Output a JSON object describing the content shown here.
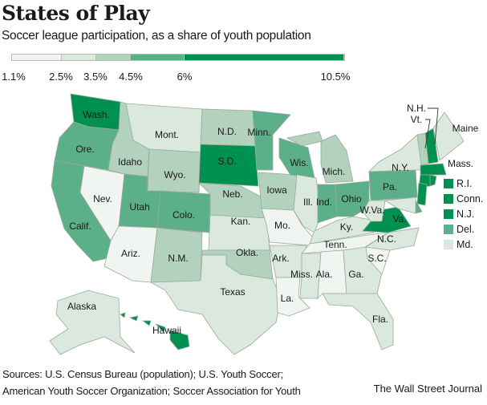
{
  "header": {
    "title": "States of Play",
    "subtitle": "Soccer league participation, as a share of youth population"
  },
  "legend": {
    "colors": [
      "#f1f5f1",
      "#dbe8de",
      "#b2d2bd",
      "#5bb08a",
      "#00904f"
    ],
    "breaks": [
      "1.1%",
      "2.5%",
      "3.5%",
      "4.5%",
      "6%",
      "10.5%"
    ],
    "break_values": [
      1.1,
      2.5,
      3.5,
      4.5,
      6,
      10.5
    ]
  },
  "states": [
    {
      "id": "WA",
      "label": "Wash.",
      "level": 5
    },
    {
      "id": "OR",
      "label": "Ore.",
      "level": 4
    },
    {
      "id": "CA",
      "label": "Calif.",
      "level": 4
    },
    {
      "id": "NV",
      "label": "Nev.",
      "level": 1
    },
    {
      "id": "ID",
      "label": "Idaho",
      "level": 3
    },
    {
      "id": "MT",
      "label": "Mont.",
      "level": 2
    },
    {
      "id": "WY",
      "label": "Wyo.",
      "level": 3
    },
    {
      "id": "UT",
      "label": "Utah",
      "level": 4
    },
    {
      "id": "CO",
      "label": "Colo.",
      "level": 4
    },
    {
      "id": "AZ",
      "label": "Ariz.",
      "level": 1
    },
    {
      "id": "NM",
      "label": "N.M.",
      "level": 3
    },
    {
      "id": "ND",
      "label": "N.D.",
      "level": 3
    },
    {
      "id": "SD",
      "label": "S.D.",
      "level": 5
    },
    {
      "id": "NE",
      "label": "Neb.",
      "level": 3
    },
    {
      "id": "KS",
      "label": "Kan.",
      "level": 2
    },
    {
      "id": "OK",
      "label": "Okla.",
      "level": 3
    },
    {
      "id": "TX",
      "label": "Texas",
      "level": 2
    },
    {
      "id": "MN",
      "label": "Minn.",
      "level": 4
    },
    {
      "id": "IA",
      "label": "Iowa",
      "level": 3
    },
    {
      "id": "MO",
      "label": "Mo.",
      "level": 1
    },
    {
      "id": "AR",
      "label": "Ark.",
      "level": 2
    },
    {
      "id": "LA",
      "label": "La.",
      "level": 1
    },
    {
      "id": "WI",
      "label": "Wis.",
      "level": 4
    },
    {
      "id": "IL",
      "label": "Ill.",
      "level": 2
    },
    {
      "id": "MI",
      "label": "Mich.",
      "level": 3
    },
    {
      "id": "IN",
      "label": "Ind.",
      "level": 4
    },
    {
      "id": "OH",
      "label": "Ohio",
      "level": 4
    },
    {
      "id": "KY",
      "label": "Ky.",
      "level": 2
    },
    {
      "id": "TN",
      "label": "Tenn.",
      "level": 1
    },
    {
      "id": "MS",
      "label": "Miss.",
      "level": 2
    },
    {
      "id": "AL",
      "label": "Ala.",
      "level": 1
    },
    {
      "id": "GA",
      "label": "Ga.",
      "level": 2
    },
    {
      "id": "FL",
      "label": "Fla.",
      "level": 2
    },
    {
      "id": "SC",
      "label": "S.C.",
      "level": 1
    },
    {
      "id": "NC",
      "label": "N.C.",
      "level": 2
    },
    {
      "id": "VA",
      "label": "Va.",
      "level": 5
    },
    {
      "id": "WV",
      "label": "W.Va.",
      "level": 2
    },
    {
      "id": "PA",
      "label": "Pa.",
      "level": 4
    },
    {
      "id": "NY",
      "label": "N.Y.",
      "level": 2
    },
    {
      "id": "VT",
      "label": "Vt.",
      "level": 3
    },
    {
      "id": "NH",
      "label": "N.H.",
      "level": 5
    },
    {
      "id": "ME",
      "label": "Maine",
      "level": 2
    },
    {
      "id": "MA",
      "label": "Mass.",
      "level": 5
    },
    {
      "id": "RI",
      "label": "R.I.",
      "level": 5
    },
    {
      "id": "CT",
      "label": "Conn.",
      "level": 5
    },
    {
      "id": "NJ",
      "label": "N.J.",
      "level": 5
    },
    {
      "id": "DE",
      "label": "Del.",
      "level": 4
    },
    {
      "id": "MD",
      "label": "Md.",
      "level": 2
    },
    {
      "id": "AK",
      "label": "Alaska",
      "level": 2
    },
    {
      "id": "HI",
      "label": "Hawaii",
      "level": 5
    }
  ],
  "small_state_key": [
    "RI",
    "CT",
    "NJ",
    "DE",
    "MD"
  ],
  "footer": {
    "sources_line1": "Sources: U.S. Census Bureau (population); U.S. Youth Soccer;",
    "sources_line2": "American Youth Soccer Organization; Soccer Association for Youth",
    "credit": "The Wall Street Journal"
  }
}
